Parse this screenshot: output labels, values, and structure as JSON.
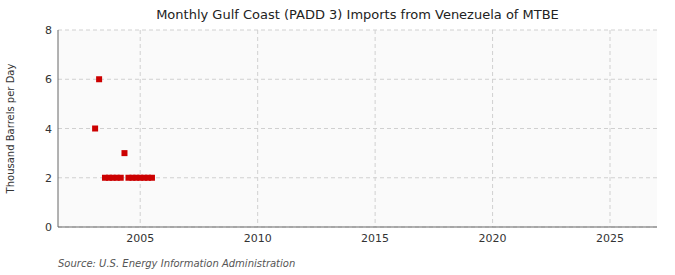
{
  "chart_data": {
    "type": "scatter",
    "title": "Monthly Gulf Coast (PADD 3) Imports from Venezuela of MTBE",
    "ylabel": "Thousand Barrels per Day",
    "source": "Source: U.S. Energy Information Administration",
    "x": [
      2003.08,
      2003.25,
      2003.5,
      2003.67,
      2003.83,
      2004.0,
      2004.17,
      2004.33,
      2004.5,
      2004.67,
      2004.83,
      2005.0,
      2005.17,
      2005.33,
      2005.5
    ],
    "values": [
      4.0,
      6.0,
      2.0,
      2.0,
      2.0,
      2.0,
      2.0,
      3.0,
      2.0,
      2.0,
      2.0,
      2.0,
      2.0,
      2.0,
      2.0
    ],
    "color": "#cc0000",
    "marker": "square",
    "xlim": [
      2001.5,
      2027
    ],
    "ylim": [
      0,
      8
    ],
    "xticks": [
      2005,
      2010,
      2015,
      2020,
      2025
    ],
    "yticks": [
      0,
      2,
      4,
      6,
      8
    ],
    "grid": true
  }
}
